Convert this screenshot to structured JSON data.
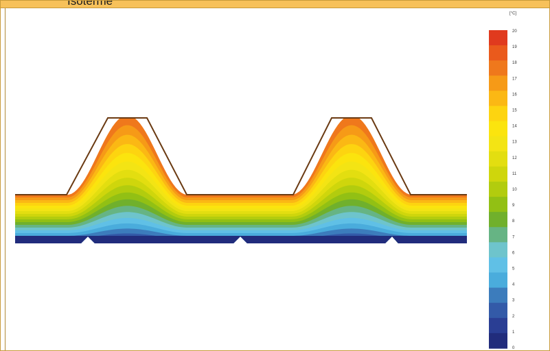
{
  "window": {
    "title": "Isoterme"
  },
  "color_scale": {
    "unit": "[°C]",
    "min": 0,
    "max": 20,
    "labels": [
      "20",
      "19",
      "18",
      "17",
      "16",
      "15",
      "14",
      "13",
      "12",
      "11",
      "10",
      "9",
      "8",
      "7",
      "6",
      "5",
      "4",
      "3",
      "2",
      "1",
      "0"
    ],
    "band_colors": [
      "#e03a1e",
      "#ea5a1c",
      "#ef781c",
      "#f69a17",
      "#fbb814",
      "#fdd410",
      "#fbe40e",
      "#f3e414",
      "#e3de10",
      "#cfd60c",
      "#b2cc0e",
      "#92c014",
      "#70b02c",
      "#66b484",
      "#6ec4cc",
      "#60c0e6",
      "#4aacdc",
      "#3c7cbc",
      "#335aa8",
      "#2a3e94",
      "#212c7c"
    ]
  },
  "diagram": {
    "description_items": [
      "temperature-isotherm-field",
      "corrugated-roof-cross-section"
    ],
    "band_count": 17
  }
}
